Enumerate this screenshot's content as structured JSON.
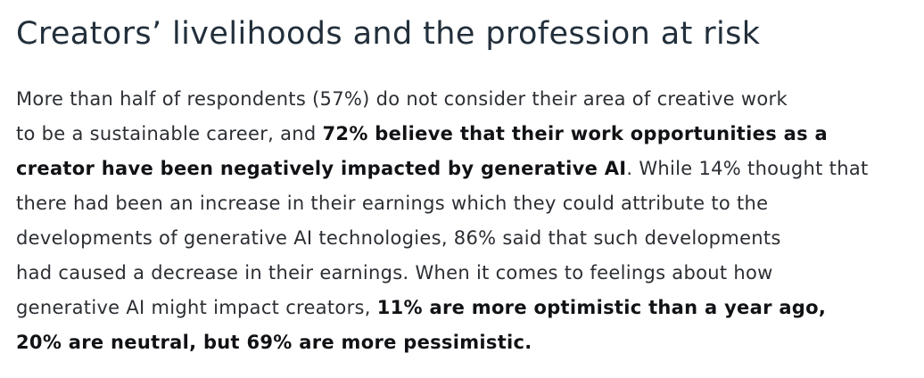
{
  "page": {
    "background_color": "#ffffff"
  },
  "heading": {
    "text": "Creators’ livelihoods and the profession at risk",
    "color": "#222f3b"
  },
  "paragraph": {
    "text_color": "#2b2e33",
    "bold_color": "#101215",
    "full_text": "More than half of respondents (57%) do not consider their area of creative work to be a sustainable career, and 72% believe that their work opportunities as a creator have been negatively impacted by generative AI. While 14% thought that there had been an increase in their earnings which they could attribute to the developments of generative AI technologies, 86% said that such developments had caused a decrease in their earnings. When it comes to feelings about how generative AI might impact creators, 11% are more optimistic than a year ago, 20% are neutral, but 69% are more pessimistic.",
    "key_statistics": {
      "not_sustainable_career_pct": "57%",
      "work_opportunities_negatively_impacted_pct": "72%",
      "earnings_increase_pct": "14%",
      "earnings_decrease_pct": "86%",
      "more_optimistic_pct": "11%",
      "neutral_pct": "20%",
      "more_pessimistic_pct": "69%"
    },
    "lines": [
      [
        {
          "text": "More than half of respondents (57%) do not consider their area of creative work",
          "bold": false
        }
      ],
      [
        {
          "text": "to be a sustainable career, and ",
          "bold": false
        },
        {
          "text": "72% believe that their work opportunities as a",
          "bold": true
        }
      ],
      [
        {
          "text": "creator have been negatively impacted by generative AI",
          "bold": true
        },
        {
          "text": ". While 14% thought that",
          "bold": false
        }
      ],
      [
        {
          "text": "there had been an increase in their earnings which they could attribute to the",
          "bold": false
        }
      ],
      [
        {
          "text": "developments of generative AI technologies, 86% said that such developments",
          "bold": false
        }
      ],
      [
        {
          "text": "had caused a decrease in their earnings. When it comes to feelings about how",
          "bold": false
        }
      ],
      [
        {
          "text": "generative AI might impact creators, ",
          "bold": false
        },
        {
          "text": "11% are more optimistic than a year ago,",
          "bold": true
        }
      ],
      [
        {
          "text": "20% are neutral, but 69% are more pessimistic.",
          "bold": true
        }
      ]
    ]
  }
}
